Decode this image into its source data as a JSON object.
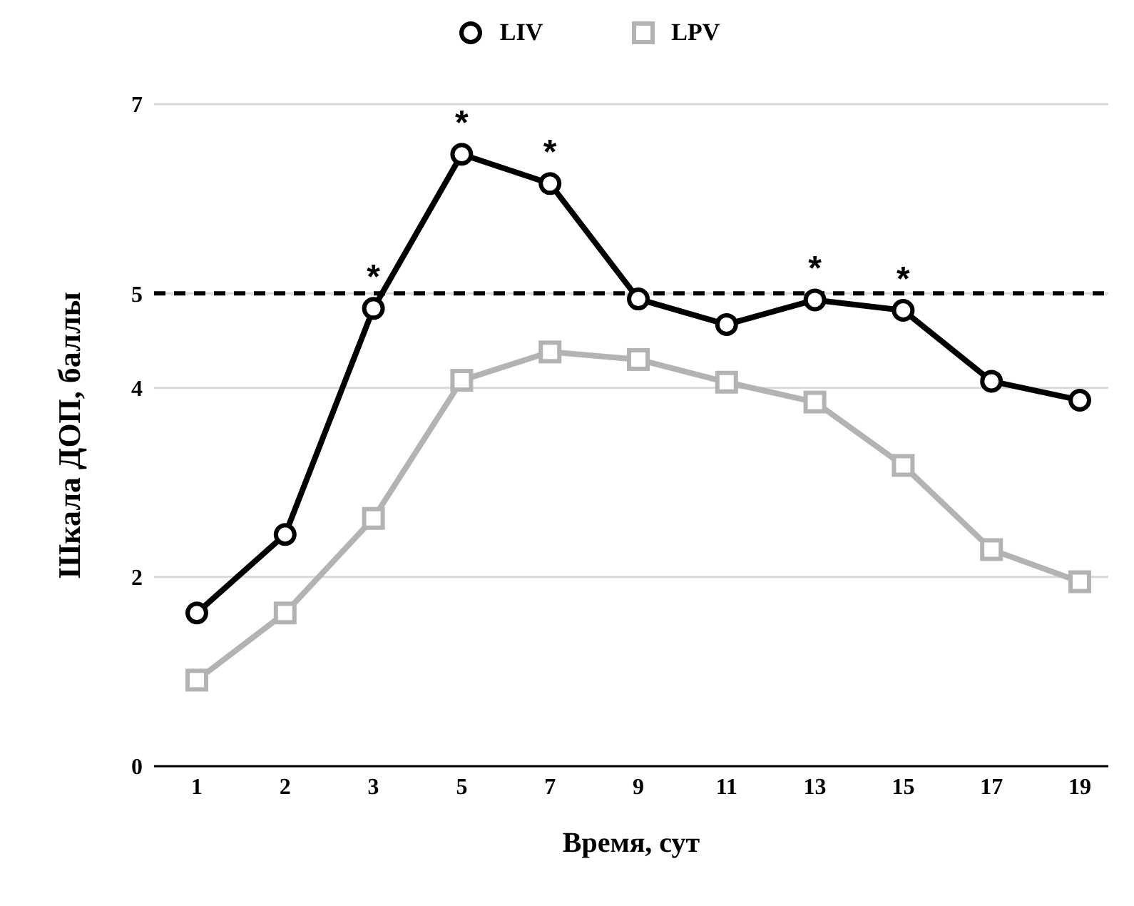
{
  "chart_data": {
    "type": "line",
    "xlabel": "Время, сут",
    "ylabel": "Шкала ДОП, баллы",
    "categories": [
      "1",
      "2",
      "3",
      "5",
      "7",
      "9",
      "11",
      "13",
      "15",
      "17",
      "19"
    ],
    "series": [
      {
        "name": "LIV",
        "color": "#000000",
        "marker": "circle",
        "values": [
          1.62,
          2.45,
          4.84,
          6.47,
          6.16,
          4.94,
          4.67,
          4.93,
          4.82,
          4.07,
          3.87
        ]
      },
      {
        "name": "LPV",
        "color": "#b3b3b3",
        "marker": "square",
        "values": [
          0.91,
          1.62,
          2.62,
          4.08,
          4.38,
          4.3,
          4.06,
          3.85,
          3.18,
          2.29,
          1.95
        ]
      }
    ],
    "ylim": [
      0,
      7
    ],
    "yticks": [
      0,
      2,
      4,
      5,
      7
    ],
    "grid": "y",
    "legend": "top",
    "line_style": "solid",
    "ref_lines": [
      {
        "axis": "y",
        "value": 5,
        "label": null,
        "color": "#000000",
        "line_style": "dashed"
      }
    ],
    "annotations": [
      {
        "text": "*",
        "x": "3",
        "y": 4.84
      },
      {
        "text": "*",
        "x": "5",
        "y": 6.47
      },
      {
        "text": "*",
        "x": "7",
        "y": 6.16
      },
      {
        "text": "*",
        "x": "13",
        "y": 4.93
      },
      {
        "text": "*",
        "x": "15",
        "y": 4.82
      }
    ]
  }
}
